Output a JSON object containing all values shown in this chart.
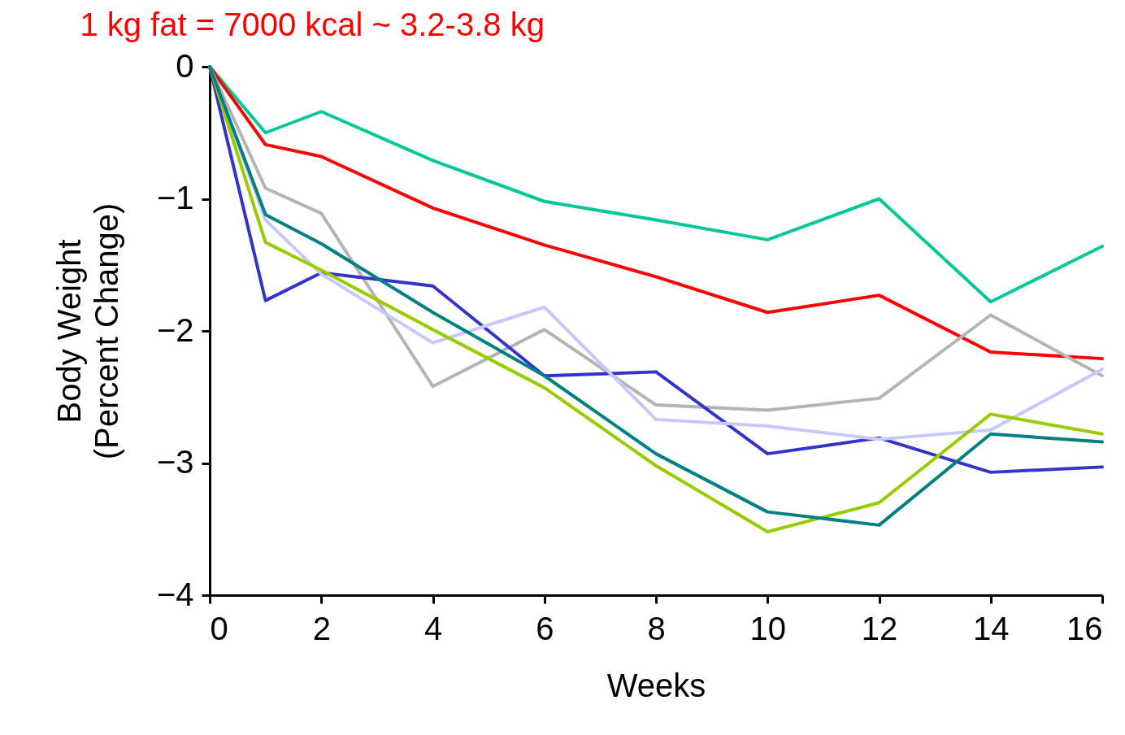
{
  "chart_data": {
    "type": "line",
    "title": "1 kg fat = 7000 kcal ~ 3.2-3.8 kg",
    "xlabel": "Weeks",
    "ylabel": "Body Weight\n(Percent Change)",
    "x": [
      0,
      1,
      2,
      4,
      6,
      8,
      10,
      12,
      14,
      16
    ],
    "xlim": [
      0,
      16
    ],
    "xticks": [
      0,
      2,
      4,
      6,
      8,
      10,
      12,
      14,
      16
    ],
    "ylim": [
      -4,
      0
    ],
    "yticks": [
      -4,
      -3,
      -2,
      -1,
      0
    ],
    "grid": false,
    "legend": false,
    "marker": "none",
    "line_style": "solid",
    "series": [
      {
        "color": "#00c896",
        "values": [
          0,
          -0.5,
          -0.34,
          -0.71,
          -1.02,
          -1.16,
          -1.31,
          -1.0,
          -1.78,
          -1.36
        ]
      },
      {
        "color": "#ff0000",
        "values": [
          0,
          -0.59,
          -0.68,
          -1.07,
          -1.35,
          -1.59,
          -1.86,
          -1.73,
          -2.16,
          -2.21
        ]
      },
      {
        "color": "#b4b4b4",
        "values": [
          0,
          -0.92,
          -1.11,
          -2.42,
          -1.99,
          -2.56,
          -2.6,
          -2.51,
          -1.88,
          -2.34
        ]
      },
      {
        "color": "#3333cc",
        "values": [
          0,
          -1.77,
          -1.56,
          -1.66,
          -2.34,
          -2.31,
          -2.93,
          -2.81,
          -3.07,
          -3.03
        ]
      },
      {
        "color": "#c8c8ff",
        "values": [
          0,
          -1.16,
          -1.57,
          -2.09,
          -1.82,
          -2.67,
          -2.72,
          -2.82,
          -2.75,
          -2.29
        ]
      },
      {
        "color": "#99cc00",
        "values": [
          0,
          -1.33,
          -1.54,
          -1.99,
          -2.43,
          -3.02,
          -3.52,
          -3.3,
          -2.63,
          -2.78
        ]
      },
      {
        "color": "#008080",
        "values": [
          0,
          -1.12,
          -1.34,
          -1.86,
          -2.34,
          -2.93,
          -3.37,
          -3.47,
          -2.78,
          -2.84
        ]
      }
    ]
  }
}
